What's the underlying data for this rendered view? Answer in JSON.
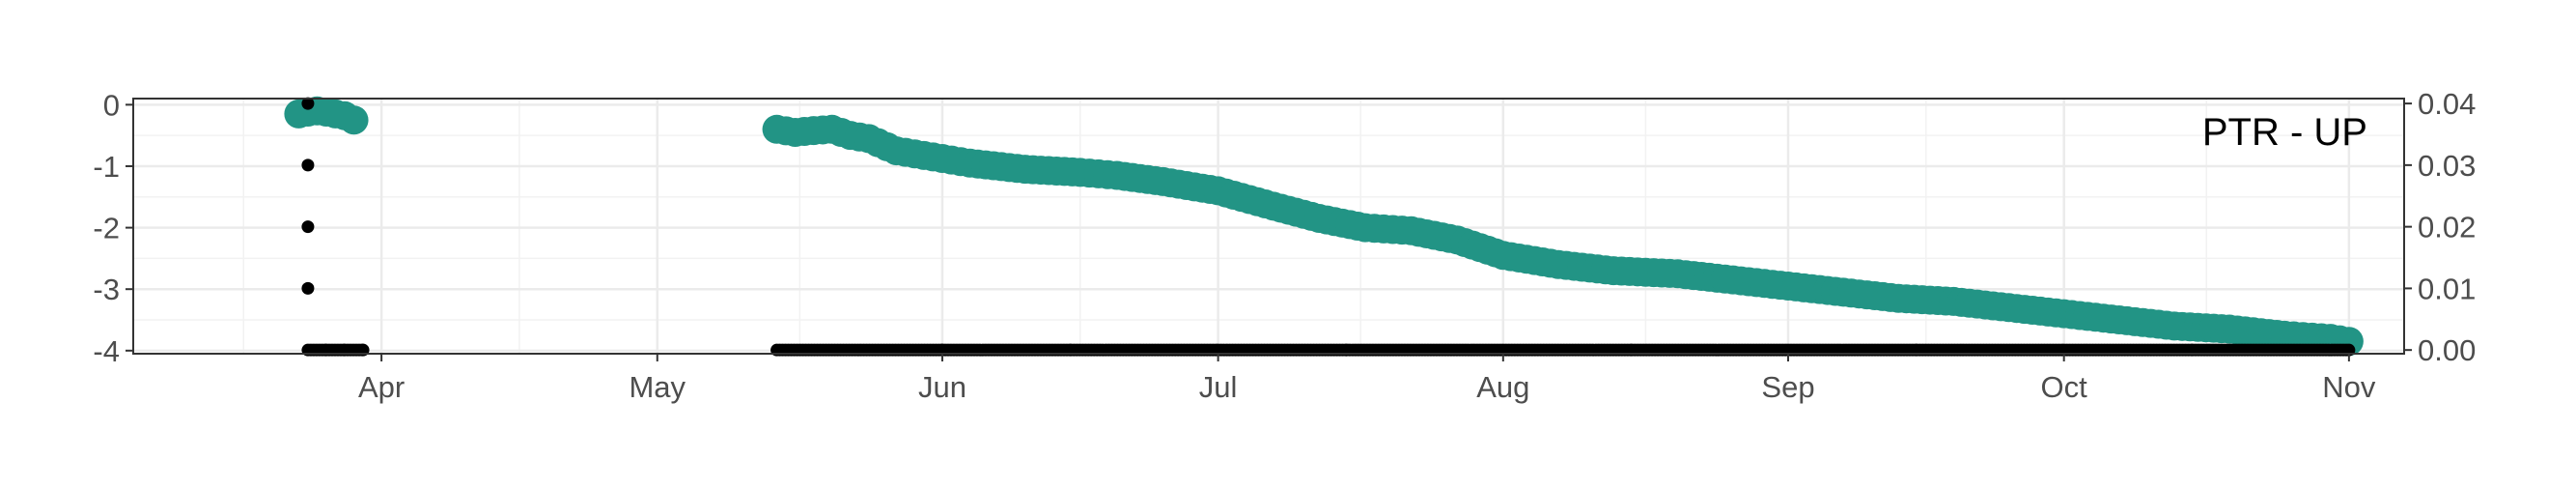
{
  "chart_data": {
    "type": "scatter",
    "title": "PTR - UP",
    "xlabel": "",
    "ylabel_left": "",
    "ylabel_right": "",
    "x_axis": {
      "type": "date",
      "range": [
        "2023-03-05",
        "2023-11-07"
      ],
      "ticks": [
        {
          "date": "2023-04-01",
          "label": "Apr"
        },
        {
          "date": "2023-05-01",
          "label": "May"
        },
        {
          "date": "2023-06-01",
          "label": "Jun"
        },
        {
          "date": "2023-07-01",
          "label": "Jul"
        },
        {
          "date": "2023-08-01",
          "label": "Aug"
        },
        {
          "date": "2023-09-01",
          "label": "Sep"
        },
        {
          "date": "2023-10-01",
          "label": "Oct"
        },
        {
          "date": "2023-11-01",
          "label": "Nov"
        }
      ]
    },
    "y_left": {
      "range": [
        -4.05,
        0.1
      ],
      "ticks": [
        0,
        -1,
        -2,
        -3,
        -4
      ],
      "labels": [
        "0",
        "-1",
        "-2",
        "-3",
        "-4"
      ]
    },
    "y_right": {
      "range": [
        -0.0006,
        0.0408
      ],
      "ticks": [
        0.04,
        0.03,
        0.02,
        0.01,
        0.0
      ],
      "labels": [
        "0.04",
        "0.03",
        "0.02",
        "0.01",
        "0.00"
      ]
    },
    "grid": true,
    "series": [
      {
        "axis": "left",
        "color": "#229485",
        "marker": "large-circle",
        "x": [
          "2023-03-23",
          "2023-03-24",
          "2023-03-25",
          "2023-03-26",
          "2023-03-27",
          "2023-03-28",
          "2023-03-29",
          "2023-05-14",
          "2023-05-16",
          "2023-05-18",
          "2023-05-20",
          "2023-05-22",
          "2023-05-24",
          "2023-05-27",
          "2023-05-31",
          "2023-06-04",
          "2023-06-10",
          "2023-06-16",
          "2023-06-20",
          "2023-06-25",
          "2023-07-01",
          "2023-07-07",
          "2023-07-12",
          "2023-07-17",
          "2023-07-22",
          "2023-07-27",
          "2023-08-01",
          "2023-08-07",
          "2023-08-13",
          "2023-08-20",
          "2023-08-26",
          "2023-09-01",
          "2023-09-07",
          "2023-09-13",
          "2023-09-19",
          "2023-09-25",
          "2023-10-01",
          "2023-10-07",
          "2023-10-13",
          "2023-10-19",
          "2023-10-25",
          "2023-10-30",
          "2023-11-01"
        ],
        "y": [
          -0.15,
          -0.12,
          -0.1,
          -0.12,
          -0.15,
          -0.18,
          -0.25,
          -0.4,
          -0.45,
          -0.42,
          -0.4,
          -0.5,
          -0.55,
          -0.75,
          -0.85,
          -0.95,
          -1.05,
          -1.1,
          -1.15,
          -1.25,
          -1.4,
          -1.65,
          -1.85,
          -2.0,
          -2.05,
          -2.2,
          -2.45,
          -2.6,
          -2.7,
          -2.75,
          -2.85,
          -2.95,
          -3.05,
          -3.15,
          -3.2,
          -3.3,
          -3.4,
          -3.5,
          -3.6,
          -3.65,
          -3.75,
          -3.8,
          -3.85
        ]
      },
      {
        "axis": "right",
        "color": "#000000",
        "marker": "small-dot",
        "x": [
          "2023-03-24",
          "2023-03-24",
          "2023-03-24",
          "2023-03-24",
          "2023-03-24",
          "2023-03-26",
          "2023-03-28",
          "2023-03-30",
          "2023-05-14",
          "2023-06-01",
          "2023-06-15",
          "2023-07-01",
          "2023-07-15",
          "2023-08-01",
          "2023-08-15",
          "2023-09-01",
          "2023-09-15",
          "2023-10-01",
          "2023-10-15",
          "2023-11-01"
        ],
        "y": [
          0.04,
          0.03,
          0.02,
          0.01,
          0.0,
          0.0,
          0.0,
          0.0,
          0.0,
          0.0,
          0.0,
          0.0,
          0.0,
          0.0,
          0.0,
          0.0,
          0.0,
          0.0,
          0.0,
          0.0
        ]
      }
    ]
  }
}
